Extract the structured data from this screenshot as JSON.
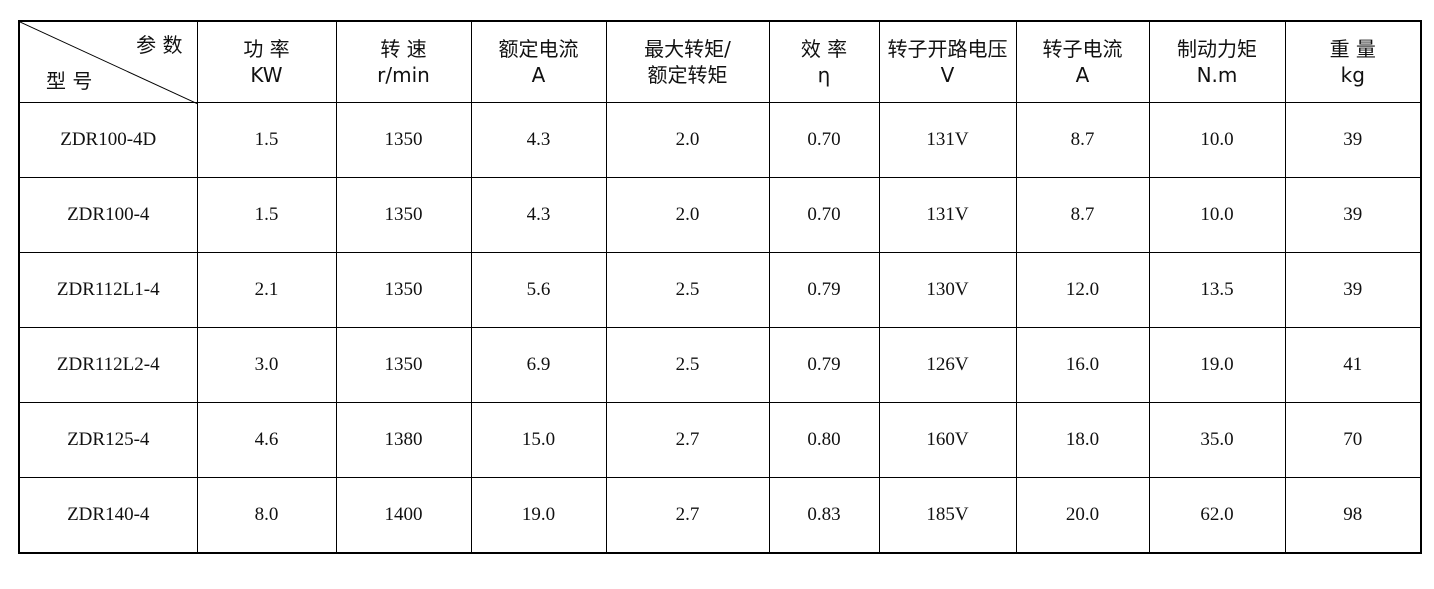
{
  "header": {
    "corner_top": "参 数",
    "corner_bottom": "型 号",
    "columns": [
      [
        "功 率",
        "KW"
      ],
      [
        "转 速",
        "r/min"
      ],
      [
        "额定电流",
        "A"
      ],
      [
        "最大转矩/",
        "额定转矩"
      ],
      [
        "效 率",
        "η"
      ],
      [
        "转子开路电压",
        "V"
      ],
      [
        "转子电流",
        "A"
      ],
      [
        "制动力矩",
        "N.m"
      ],
      [
        "重 量",
        "kg"
      ]
    ]
  },
  "rows": [
    [
      "ZDR100-4D",
      "1.5",
      "1350",
      "4.3",
      "2.0",
      "0.70",
      "131V",
      "8.7",
      "10.0",
      "39"
    ],
    [
      "ZDR100-4",
      "1.5",
      "1350",
      "4.3",
      "2.0",
      "0.70",
      "131V",
      "8.7",
      "10.0",
      "39"
    ],
    [
      "ZDR112L1-4",
      "2.1",
      "1350",
      "5.6",
      "2.5",
      "0.79",
      "130V",
      "12.0",
      "13.5",
      "39"
    ],
    [
      "ZDR112L2-4",
      "3.0",
      "1350",
      "6.9",
      "2.5",
      "0.79",
      "126V",
      "16.0",
      "19.0",
      "41"
    ],
    [
      "ZDR125-4",
      "4.6",
      "1380",
      "15.0",
      "2.7",
      "0.80",
      "160V",
      "18.0",
      "35.0",
      "70"
    ],
    [
      "ZDR140-4",
      "8.0",
      "1400",
      "19.0",
      "2.7",
      "0.83",
      "185V",
      "20.0",
      "62.0",
      "98"
    ]
  ]
}
